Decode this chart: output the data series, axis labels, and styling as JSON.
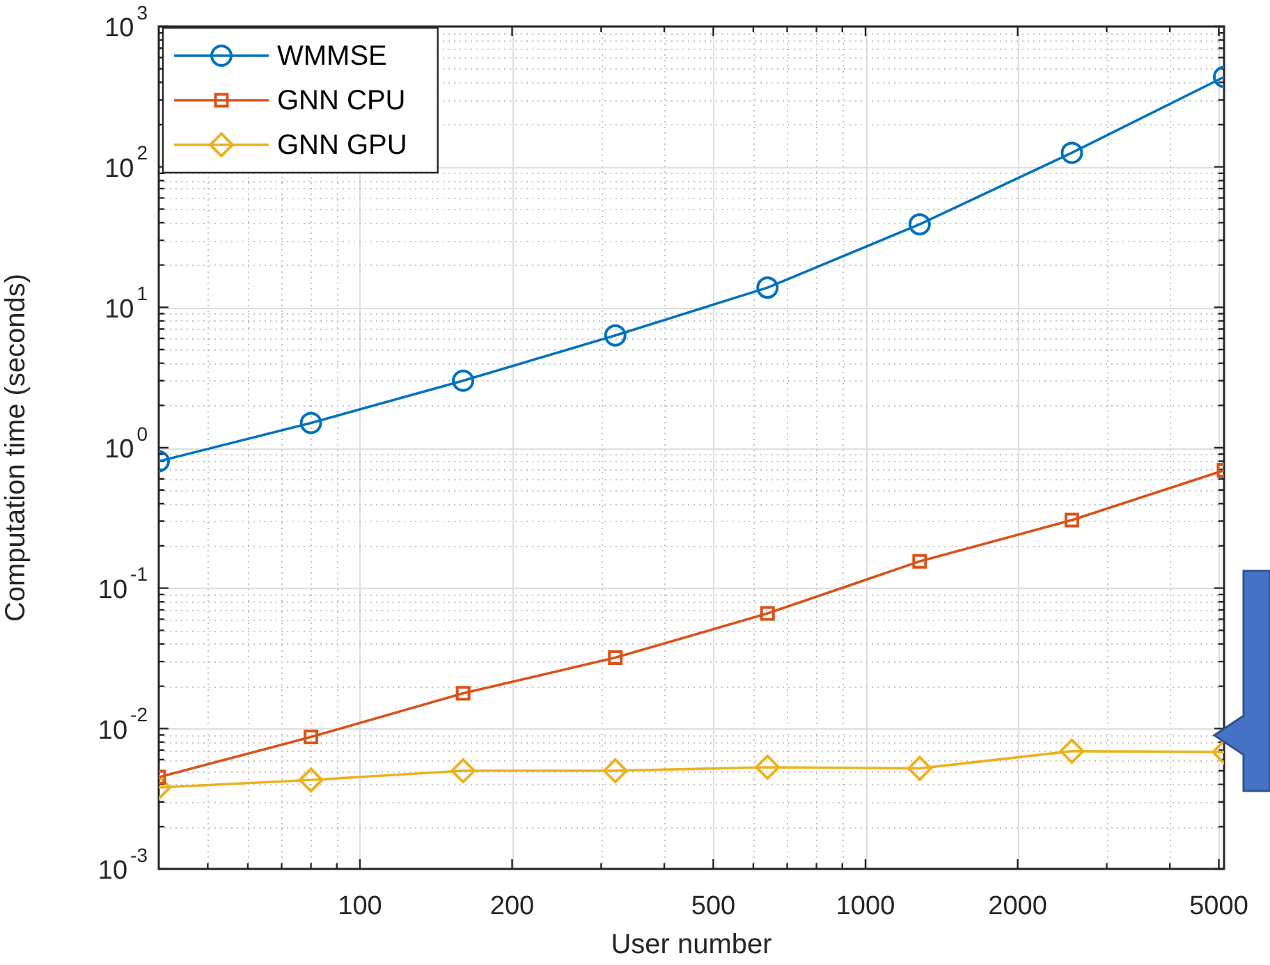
{
  "chart_data": {
    "type": "line",
    "xlabel": "User number",
    "ylabel": "Computation time (seconds)",
    "log": "xy",
    "grid": true,
    "legend": "top left",
    "x": [
      40,
      80,
      160,
      320,
      640,
      1280,
      2560,
      5120
    ],
    "xlim": [
      40,
      5120
    ],
    "xticks": [
      {
        "value": 50,
        "label": null
      },
      {
        "value": 60,
        "label": null
      },
      {
        "value": 70,
        "label": null
      },
      {
        "value": 80,
        "label": null
      },
      {
        "value": 90,
        "label": null
      },
      100,
      200,
      {
        "value": 300,
        "label": null
      },
      {
        "value": 400,
        "label": null
      },
      500,
      {
        "value": 600,
        "label": null
      },
      {
        "value": 700,
        "label": null
      },
      {
        "value": 800,
        "label": null
      },
      {
        "value": 900,
        "label": null
      },
      1000,
      2000,
      {
        "value": 3000,
        "label": null
      },
      {
        "value": 4000,
        "label": null
      },
      5000
    ],
    "ylim": [
      0.001,
      1000
    ],
    "yticks": [
      {
        "value": 0.001,
        "label": "10$^{-3}$"
      },
      {
        "value": 0.002,
        "label": null
      },
      {
        "value": 0.003,
        "label": null
      },
      {
        "value": 0.004,
        "label": null
      },
      {
        "value": 0.005,
        "label": null
      },
      {
        "value": 0.006,
        "label": null
      },
      {
        "value": 0.007,
        "label": null
      },
      {
        "value": 0.008,
        "label": null
      },
      {
        "value": 0.009,
        "label": null
      },
      {
        "value": 0.01,
        "label": "10$^{-2}$"
      },
      {
        "value": 0.02,
        "label": null
      },
      {
        "value": 0.03,
        "label": null
      },
      {
        "value": 0.04,
        "label": null
      },
      {
        "value": 0.05,
        "label": null
      },
      {
        "value": 0.06,
        "label": null
      },
      {
        "value": 0.07,
        "label": null
      },
      {
        "value": 0.08,
        "label": null
      },
      {
        "value": 0.09,
        "label": null
      },
      {
        "value": 0.1,
        "label": "10$^{-1}$"
      },
      {
        "value": 0.2,
        "label": null
      },
      {
        "value": 0.3,
        "label": null
      },
      {
        "value": 0.4,
        "label": null
      },
      {
        "value": 0.5,
        "label": null
      },
      {
        "value": 0.6,
        "label": null
      },
      {
        "value": 0.7,
        "label": null
      },
      {
        "value": 0.8,
        "label": null
      },
      {
        "value": 0.9,
        "label": null
      },
      {
        "value": 1,
        "label": "10$^{0}$"
      },
      {
        "value": 2,
        "label": null
      },
      {
        "value": 3,
        "label": null
      },
      {
        "value": 4,
        "label": null
      },
      {
        "value": 5,
        "label": null
      },
      {
        "value": 6,
        "label": null
      },
      {
        "value": 7,
        "label": null
      },
      {
        "value": 8,
        "label": null
      },
      {
        "value": 9,
        "label": null
      },
      {
        "value": 10,
        "label": "10$^{1}$"
      },
      {
        "value": 20,
        "label": null
      },
      {
        "value": 30,
        "label": null
      },
      {
        "value": 40,
        "label": null
      },
      {
        "value": 50,
        "label": null
      },
      {
        "value": 60,
        "label": null
      },
      {
        "value": 70,
        "label": null
      },
      {
        "value": 80,
        "label": null
      },
      {
        "value": 90,
        "label": null
      },
      {
        "value": 100,
        "label": "10$^{2}$"
      },
      {
        "value": 200,
        "label": null
      },
      {
        "value": 300,
        "label": null
      },
      {
        "value": 400,
        "label": null
      },
      {
        "value": 500,
        "label": null
      },
      {
        "value": 600,
        "label": null
      },
      {
        "value": 700,
        "label": null
      },
      {
        "value": 800,
        "label": null
      },
      {
        "value": 900,
        "label": null
      },
      {
        "value": 1000,
        "label": "10$^{3}$"
      }
    ],
    "series": [
      {
        "name": "WMMSE",
        "color": "#0072bd",
        "marker": "circle",
        "values": [
          0.8,
          1.5,
          3.0,
          6.3,
          13.8,
          39,
          126,
          437
        ]
      },
      {
        "name": "GNN CPU",
        "color": "#d95319",
        "marker": "square",
        "values": [
          0.0045,
          0.0087,
          0.0178,
          0.032,
          0.066,
          0.155,
          0.305,
          0.69
        ]
      },
      {
        "name": "GNN GPU",
        "color": "#edb120",
        "marker": "diamond",
        "values": [
          0.0038,
          0.0043,
          0.005,
          0.005,
          0.0053,
          0.0052,
          0.0069,
          0.0068
        ]
      }
    ]
  }
}
